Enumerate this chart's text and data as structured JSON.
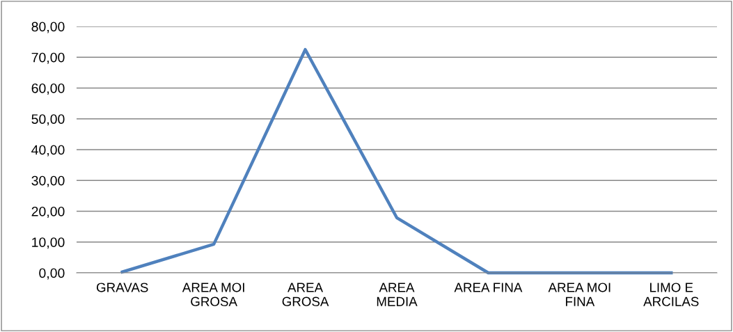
{
  "chart_data": {
    "type": "line",
    "categories": [
      "GRAVAS",
      "AREA MOI\nGROSA",
      "AREA\nGROSA",
      "AREA\nMEDIA",
      "AREA FINA",
      "AREA MOI\nFINA",
      "LIMO E\nARCILAS"
    ],
    "series": [
      {
        "color": "#4f81bd",
        "values": [
          0.3,
          9.3,
          72.5,
          17.9,
          0,
          0,
          0
        ]
      }
    ],
    "ylim": [
      0,
      80
    ],
    "yticks": [
      {
        "value": 0,
        "label": "0,00"
      },
      {
        "value": 10,
        "label": "10,00"
      },
      {
        "value": 20,
        "label": "20,00"
      },
      {
        "value": 30,
        "label": "30,00"
      },
      {
        "value": 40,
        "label": "40,00"
      },
      {
        "value": 50,
        "label": "50,00"
      },
      {
        "value": 60,
        "label": "60,00"
      },
      {
        "value": 70,
        "label": "70,00"
      },
      {
        "value": 80,
        "label": "80,00"
      }
    ],
    "grid": "y",
    "legend": false,
    "marker": "none",
    "line_style": "solid"
  }
}
